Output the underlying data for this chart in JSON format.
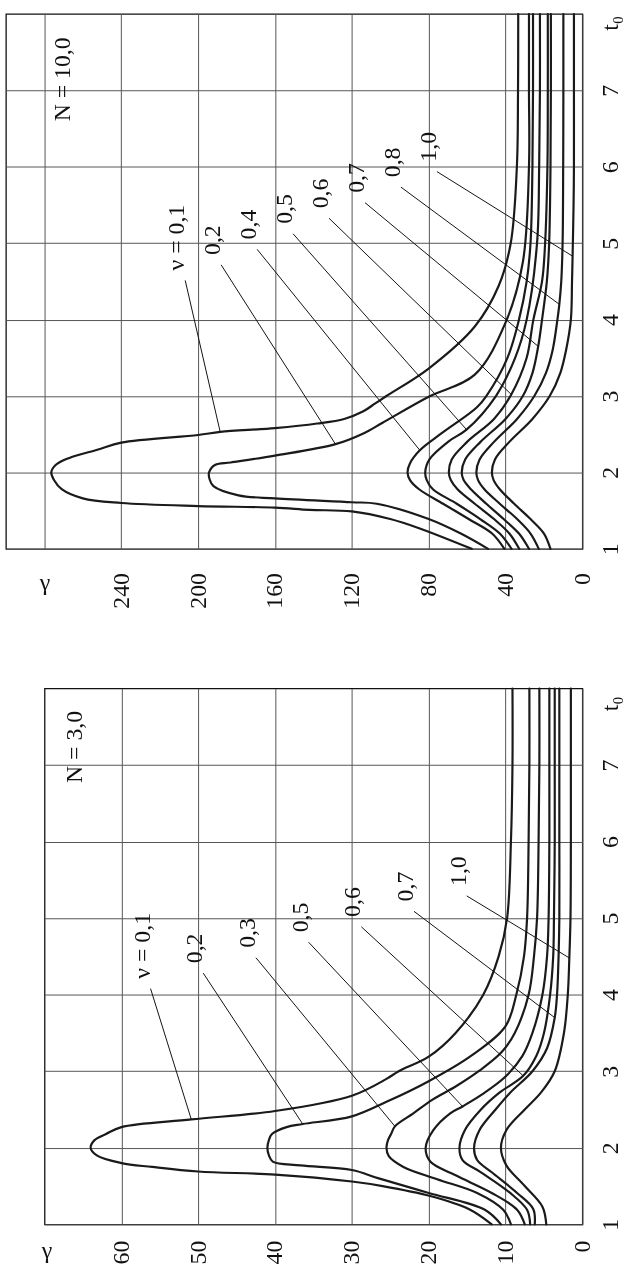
{
  "chart_data": [
    {
      "type": "line",
      "title": "N = 10,0",
      "xlabel": "γ",
      "ylabel": "t₀",
      "xlim": [
        300,
        0
      ],
      "xticks": [
        0,
        40,
        80,
        120,
        160,
        200,
        240,
        {
          "value": 280,
          "label": null
        }
      ],
      "ylim": [
        1,
        8
      ],
      "yticks": [
        1,
        2,
        3,
        4,
        5,
        6,
        7
      ],
      "grid": true,
      "series": [
        {
          "color": "#1a1a1a",
          "x": [
            57.6,
            85,
            100,
            120,
            142,
            160,
            200,
            240,
            260,
            271,
            275,
            276.4,
            274,
            267,
            252,
            240,
            200,
            188.5,
            160,
            138,
            124,
            114,
            108,
            102,
            80,
            56,
            43.6,
            37.3,
            34.1,
            33.5,
            33.4
          ],
          "values": [
            1.0,
            1.27,
            1.39,
            1.49,
            1.51,
            1.54,
            1.56,
            1.6,
            1.66,
            1.78,
            1.9,
            2.0,
            2.1,
            2.19,
            2.3,
            2.39,
            2.49,
            2.53,
            2.58,
            2.64,
            2.7,
            2.8,
            2.9,
            3.0,
            3.36,
            3.91,
            4.44,
            5.0,
            6.0,
            7.0,
            8.0
          ]
        },
        {
          "color": "#1a1a1a",
          "x": [
            49.1,
            63.3,
            80,
            107,
            120,
            160,
            179,
            192,
            194,
            194.3,
            191,
            183,
            160,
            128.5,
            114,
            104,
            80,
            56,
            40,
            31,
            27.8,
            27.8,
            27.8
          ],
          "values": [
            1.0,
            1.2,
            1.39,
            1.59,
            1.61,
            1.66,
            1.7,
            1.82,
            1.91,
            2.0,
            2.1,
            2.13,
            2.22,
            2.37,
            2.51,
            2.65,
            2.99,
            3.28,
            3.96,
            4.75,
            6.0,
            7.0,
            8.0
          ]
        },
        {
          "color": "#1a1a1a",
          "x": [
            40.6,
            47,
            59.2,
            72.5,
            85,
            89.7,
            91,
            89.7,
            84.6,
            73.4,
            55,
            50,
            39,
            33,
            29,
            27,
            26,
            25.7,
            25.7
          ],
          "values": [
            1.0,
            1.2,
            1.39,
            1.59,
            1.78,
            1.9,
            2.0,
            2.12,
            2.29,
            2.51,
            2.85,
            3.0,
            3.5,
            4.0,
            4.5,
            5.0,
            6.0,
            7.0,
            8.0
          ]
        },
        {
          "color": "#1a1a1a",
          "x": [
            36.9,
            43,
            53.2,
            65.4,
            77.8,
            81,
            81.8,
            79.6,
            69.4,
            60.3,
            45,
            35,
            29,
            23.6,
            22.5,
            22.1,
            22.1
          ],
          "values": [
            1.0,
            1.2,
            1.39,
            1.59,
            1.78,
            1.9,
            2.0,
            2.17,
            2.41,
            2.56,
            3.0,
            3.5,
            4.0,
            5.0,
            6.0,
            7.0,
            8.0
          ]
        },
        {
          "color": "#1a1a1a",
          "x": [
            32.9,
            38,
            46,
            56,
            65,
            68.5,
            69.5,
            68,
            60,
            46,
            37,
            29,
            25.5,
            21,
            19.4,
            18.2,
            18,
            18
          ],
          "values": [
            1.0,
            1.2,
            1.39,
            1.59,
            1.78,
            1.9,
            2.0,
            2.17,
            2.4,
            2.7,
            3.02,
            3.5,
            4.0,
            4.5,
            5.0,
            6.0,
            7.0,
            8.0
          ]
        },
        {
          "color": "#1a1a1a",
          "x": [
            27.8,
            33,
            41,
            50,
            58,
            61.8,
            62.8,
            61,
            53,
            40,
            31,
            26,
            23,
            21,
            18.5,
            17.3,
            16.6,
            16.4,
            16.4
          ],
          "values": [
            1.0,
            1.2,
            1.39,
            1.59,
            1.78,
            1.9,
            2.0,
            2.17,
            2.4,
            2.7,
            3.0,
            3.3,
            3.65,
            4.0,
            4.5,
            5.0,
            6.0,
            7.0,
            8.0
          ]
        },
        {
          "color": "#1a1a1a",
          "x": [
            22.7,
            27,
            34,
            43,
            51,
            54.3,
            55.2,
            53.5,
            46,
            34,
            25,
            19,
            15.5,
            13,
            12,
            11,
            10.3,
            10,
            9.9,
            9.9
          ],
          "values": [
            1.0,
            1.2,
            1.39,
            1.59,
            1.78,
            1.9,
            2.0,
            2.17,
            2.4,
            2.7,
            3.0,
            3.3,
            3.6,
            4.0,
            4.2,
            4.5,
            5.0,
            6.0,
            7.0,
            8.0
          ]
        },
        {
          "color": "#1a1a1a",
          "x": [
            16.6,
            20,
            27,
            35.5,
            43,
            46.2,
            47.1,
            45.5,
            38,
            26,
            17,
            11.5,
            8.5,
            6.0,
            5.4,
            5.1,
            4.6,
            4.4,
            4.4,
            4.4
          ],
          "values": [
            1.0,
            1.2,
            1.39,
            1.59,
            1.78,
            1.9,
            2.0,
            2.17,
            2.4,
            2.7,
            3.0,
            3.3,
            3.6,
            4.0,
            4.5,
            4.83,
            5.5,
            6.0,
            7.0,
            8.0
          ]
        }
      ],
      "annotations": [
        {
          "text": "ν = 0,1",
          "x": 188.5,
          "y": 2.53
        },
        {
          "text": "0,2",
          "x": 128.5,
          "y": 2.37
        },
        {
          "text": "0,4",
          "x": 84.6,
          "y": 2.29
        },
        {
          "text": "0,5",
          "x": 60.3,
          "y": 2.56
        },
        {
          "text": "0,6",
          "x": 37,
          "y": 3.02
        },
        {
          "text": "0,7",
          "x": 23,
          "y": 3.65
        },
        {
          "text": "0,8",
          "x": 12,
          "y": 4.2
        },
        {
          "text": "1,0",
          "x": 5.1,
          "y": 4.83
        }
      ]
    },
    {
      "type": "line",
      "title": "N = 3,0",
      "xlabel": "γ",
      "ylabel": "t₀",
      "xlim": [
        70,
        0
      ],
      "xticks": [
        0,
        10,
        20,
        30,
        40,
        50,
        60
      ],
      "ylim": [
        1,
        8
      ],
      "yticks": [
        1,
        2,
        3,
        4,
        5,
        6,
        7
      ],
      "grid": true,
      "series": [
        {
          "color": "#1a1a1a",
          "x": [
            11.8,
            14.8,
            19.8,
            26,
            30,
            40,
            50,
            56,
            60,
            63.2,
            64,
            63.5,
            62,
            60,
            50.9,
            40,
            30,
            25.5,
            23.9,
            20,
            16.5,
            12.9,
            10.9,
            9.8,
            9.3,
            9.1,
            9.1
          ],
          "values": [
            1.0,
            1.2,
            1.37,
            1.5,
            1.56,
            1.65,
            1.69,
            1.75,
            1.8,
            1.9,
            2.0,
            2.1,
            2.18,
            2.27,
            2.37,
            2.48,
            2.68,
            2.9,
            3.0,
            3.19,
            3.5,
            4.0,
            4.5,
            5.0,
            6.0,
            7.0,
            8.0
          ]
        },
        {
          "color": "#1a1a1a",
          "x": [
            10.6,
            12.7,
            20,
            26.5,
            30,
            36.7,
            40.3,
            40.8,
            41,
            40.8,
            40.4,
            38.5,
            36.4,
            30,
            25.5,
            20,
            14.5,
            10,
            8.6,
            7.6,
            7.2,
            7.0,
            6.9,
            6.9
          ],
          "values": [
            1.0,
            1.19,
            1.41,
            1.6,
            1.71,
            1.77,
            1.82,
            1.9,
            2.0,
            2.1,
            2.18,
            2.27,
            2.31,
            2.41,
            2.6,
            2.87,
            3.2,
            3.59,
            4.0,
            4.5,
            5.0,
            6.0,
            7.0,
            8.0
          ]
        },
        {
          "color": "#1a1a1a",
          "x": [
            9.3,
            10.3,
            13.7,
            18.9,
            23.3,
            25.2,
            25.5,
            25.3,
            24.9,
            24.4,
            22,
            19.5,
            16.5,
            13.5,
            10.5,
            8.8,
            7.0,
            6.3,
            5.9,
            5.7,
            5.6,
            5.6
          ],
          "values": [
            1.0,
            1.19,
            1.41,
            1.59,
            1.75,
            1.89,
            2.0,
            2.1,
            2.18,
            2.28,
            2.45,
            2.63,
            2.8,
            3.0,
            3.25,
            3.5,
            4.0,
            4.5,
            5.0,
            6.0,
            7.0,
            8.0
          ]
        },
        {
          "color": "#1a1a1a",
          "x": [
            7.5,
            8.5,
            11.8,
            16.5,
            19.8,
            20.4,
            19.4,
            17.2,
            15.6,
            13,
            10,
            7.8,
            6.5,
            5.2,
            4.6,
            4.4,
            4.3,
            4.3,
            4.3
          ],
          "values": [
            1.0,
            1.19,
            1.41,
            1.64,
            1.82,
            2.0,
            2.23,
            2.45,
            2.54,
            2.7,
            2.93,
            3.2,
            3.5,
            4.0,
            4.5,
            5.0,
            6.0,
            7.0,
            8.0
          ]
        },
        {
          "color": "#1a1a1a",
          "x": [
            6.8,
            7.2,
            9.4,
            13.2,
            15.6,
            16.0,
            15.3,
            13.2,
            10.8,
            7.7,
            6.0,
            5.0,
            4.2,
            3.8,
            3.7,
            3.6,
            3.6,
            3.6
          ],
          "values": [
            1.0,
            1.19,
            1.41,
            1.68,
            1.84,
            2.0,
            2.23,
            2.5,
            2.72,
            2.94,
            3.2,
            3.5,
            4.0,
            4.5,
            5.0,
            6.0,
            7.0,
            8.0
          ]
        },
        {
          "color": "#1a1a1a",
          "x": [
            6.2,
            6.4,
            8.5,
            11.8,
            13.7,
            14.1,
            13.4,
            11.3,
            9.4,
            6.5,
            4.6,
            3.6,
            3.3,
            3.1,
            3.0,
            3.0,
            3.0,
            3.0
          ],
          "values": [
            1.0,
            1.2,
            1.41,
            1.68,
            1.84,
            2.0,
            2.23,
            2.5,
            2.72,
            3.0,
            3.3,
            3.7,
            4.0,
            4.5,
            5.0,
            6.0,
            7.0,
            8.0
          ]
        },
        {
          "color": "#1a1a1a",
          "x": [
            4.7,
            5.2,
            7.5,
            9.9,
            10.6,
            9.9,
            7.5,
            5.4,
            3.6,
            2.4,
            1.9,
            1.7,
            1.55,
            1.5,
            1.5,
            1.5
          ],
          "values": [
            1.0,
            1.23,
            1.5,
            1.77,
            2.0,
            2.23,
            2.5,
            2.72,
            3.0,
            3.5,
            4.0,
            4.48,
            5.0,
            6.0,
            7.0,
            8.0
          ]
        }
      ],
      "annotations": [
        {
          "text": "ν = 0,1",
          "x": 50.9,
          "y": 2.37
        },
        {
          "text": "0,2",
          "x": 36.4,
          "y": 2.31
        },
        {
          "text": "0,3",
          "x": 24.4,
          "y": 2.28
        },
        {
          "text": "0,5",
          "x": 15.6,
          "y": 2.54
        },
        {
          "text": "0,6",
          "x": 7.7,
          "y": 2.94
        },
        {
          "text": "0,7",
          "x": 3.6,
          "y": 3.7
        },
        {
          "text": "1,0",
          "x": 1.7,
          "y": 4.48
        }
      ]
    }
  ]
}
